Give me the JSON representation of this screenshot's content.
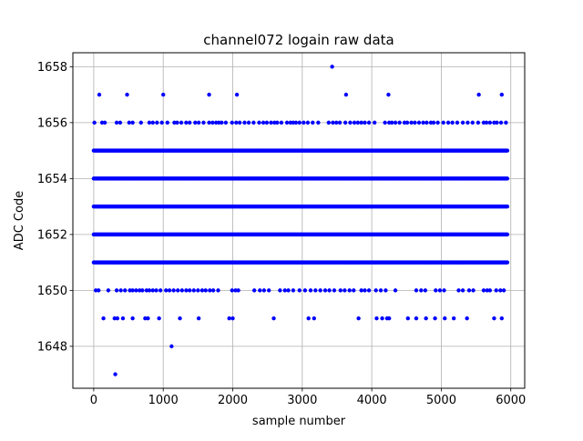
{
  "chart_data": {
    "type": "scatter",
    "title": "channel072 logain raw data",
    "xlabel": "sample number",
    "ylabel": "ADC Code",
    "xlim": [
      -300,
      6200
    ],
    "ylim": [
      1646.5,
      1658.5
    ],
    "xticks": [
      0,
      1000,
      2000,
      3000,
      4000,
      5000,
      6000
    ],
    "yticks": [
      1648,
      1650,
      1652,
      1654,
      1656,
      1658
    ],
    "grid": true,
    "n_samples": 5950,
    "marker_color": "#0000ff",
    "dense_levels": [
      1651,
      1652,
      1653,
      1654,
      1655
    ],
    "sparse_levels": {
      "1650": [
        30,
        70,
        210,
        330,
        390,
        450,
        520,
        560,
        610,
        660,
        700,
        760,
        800,
        850,
        900,
        960,
        1040,
        1090,
        1150,
        1210,
        1270,
        1330,
        1380,
        1440,
        1500,
        1560,
        1610,
        1670,
        1720,
        1790,
        1990,
        2040,
        2080,
        2310,
        2390,
        2450,
        2520,
        2680,
        2750,
        2800,
        2870,
        2960,
        3040,
        3120,
        3190,
        3260,
        3330,
        3390,
        3460,
        3550,
        3610,
        3680,
        3740,
        3850,
        3900,
        3960,
        4060,
        4130,
        4200,
        4340,
        4640,
        4710,
        4770,
        4920,
        4980,
        5040,
        5250,
        5310,
        5400,
        5460,
        5610,
        5660,
        5700,
        5790,
        5850,
        5900
      ],
      "1656": [
        10,
        120,
        160,
        330,
        380,
        510,
        560,
        680,
        800,
        850,
        910,
        980,
        1060,
        1160,
        1200,
        1260,
        1330,
        1380,
        1460,
        1510,
        1580,
        1660,
        1710,
        1760,
        1800,
        1840,
        1900,
        1990,
        2050,
        2100,
        2170,
        2230,
        2300,
        2380,
        2440,
        2490,
        2550,
        2600,
        2640,
        2700,
        2780,
        2830,
        2870,
        2910,
        2960,
        3020,
        3080,
        3150,
        3230,
        3380,
        3440,
        3490,
        3540,
        3620,
        3690,
        3750,
        3800,
        3850,
        3900,
        3960,
        4040,
        4190,
        4250,
        4290,
        4340,
        4400,
        4470,
        4510,
        4570,
        4620,
        4680,
        4740,
        4790,
        4850,
        4890,
        4950,
        5030,
        5100,
        5160,
        5230,
        5310,
        5380,
        5450,
        5530,
        5610,
        5650,
        5700,
        5760,
        5800,
        5860,
        5930
      ],
      "1649": [
        140,
        300,
        340,
        420,
        560,
        740,
        780,
        940,
        1240,
        1510,
        1950,
        2000,
        2590,
        3090,
        3170,
        3810,
        4070,
        4150,
        4220,
        4250,
        4520,
        4640,
        4780,
        4910,
        5050,
        5180,
        5370,
        5760,
        5870
      ],
      "1657": [
        80,
        480,
        1000,
        1660,
        2060,
        3630,
        4240,
        5540,
        5870
      ],
      "1648": [
        1120
      ],
      "1647": [
        310
      ],
      "1658": [
        3430
      ]
    }
  }
}
